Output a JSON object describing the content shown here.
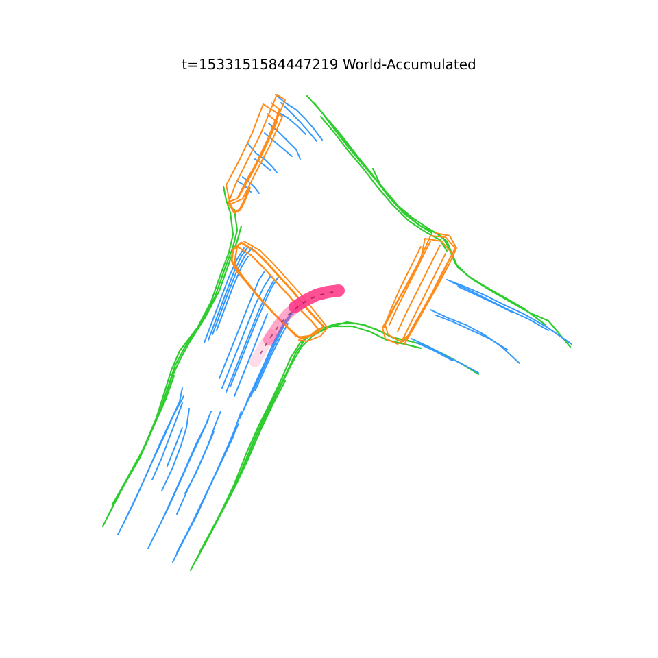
{
  "title": "t=1533151584447219  World-Accumulated",
  "legend_colors": {
    "divider": "#2fcc2f",
    "ped_crossing": "#ff8c1a",
    "boundary": "#3399ff",
    "ego_trajectory": "#ff3d8b"
  },
  "layers": [
    "divider",
    "ped_crossing",
    "boundary",
    "ego_trajectory"
  ]
}
